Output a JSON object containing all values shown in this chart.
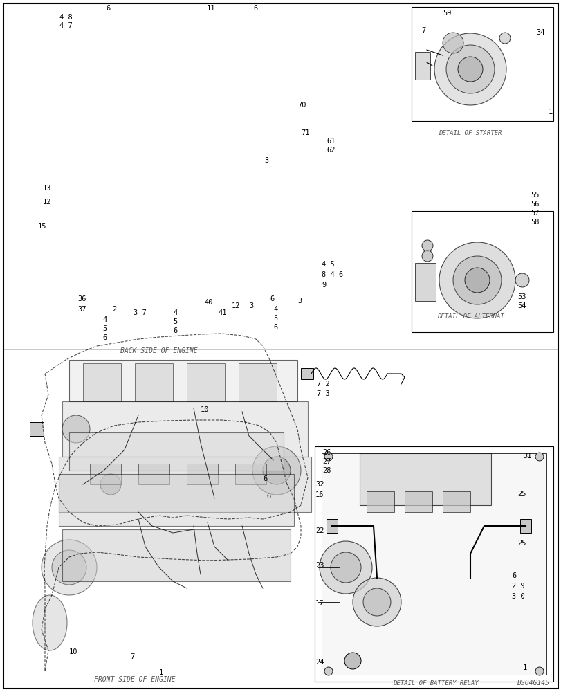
{
  "bg_color": "#ffffff",
  "border_color": "#000000",
  "text_color": "#000000",
  "labels": {
    "back_side_of_engine": "BACK SIDE OF ENGINE",
    "front_side_of_engine": "FRONT SIDE OF ENGINE",
    "detail_of_starter": "DETAIL OF STARTER",
    "detail_of_alternat": "DETAIL OF ALTERNAT",
    "detail_of_battery_relay": "DETAIL OF BATTERY RELAY",
    "code": "BS04G145"
  },
  "figsize": [
    8.12,
    10.0
  ],
  "dpi": 100
}
